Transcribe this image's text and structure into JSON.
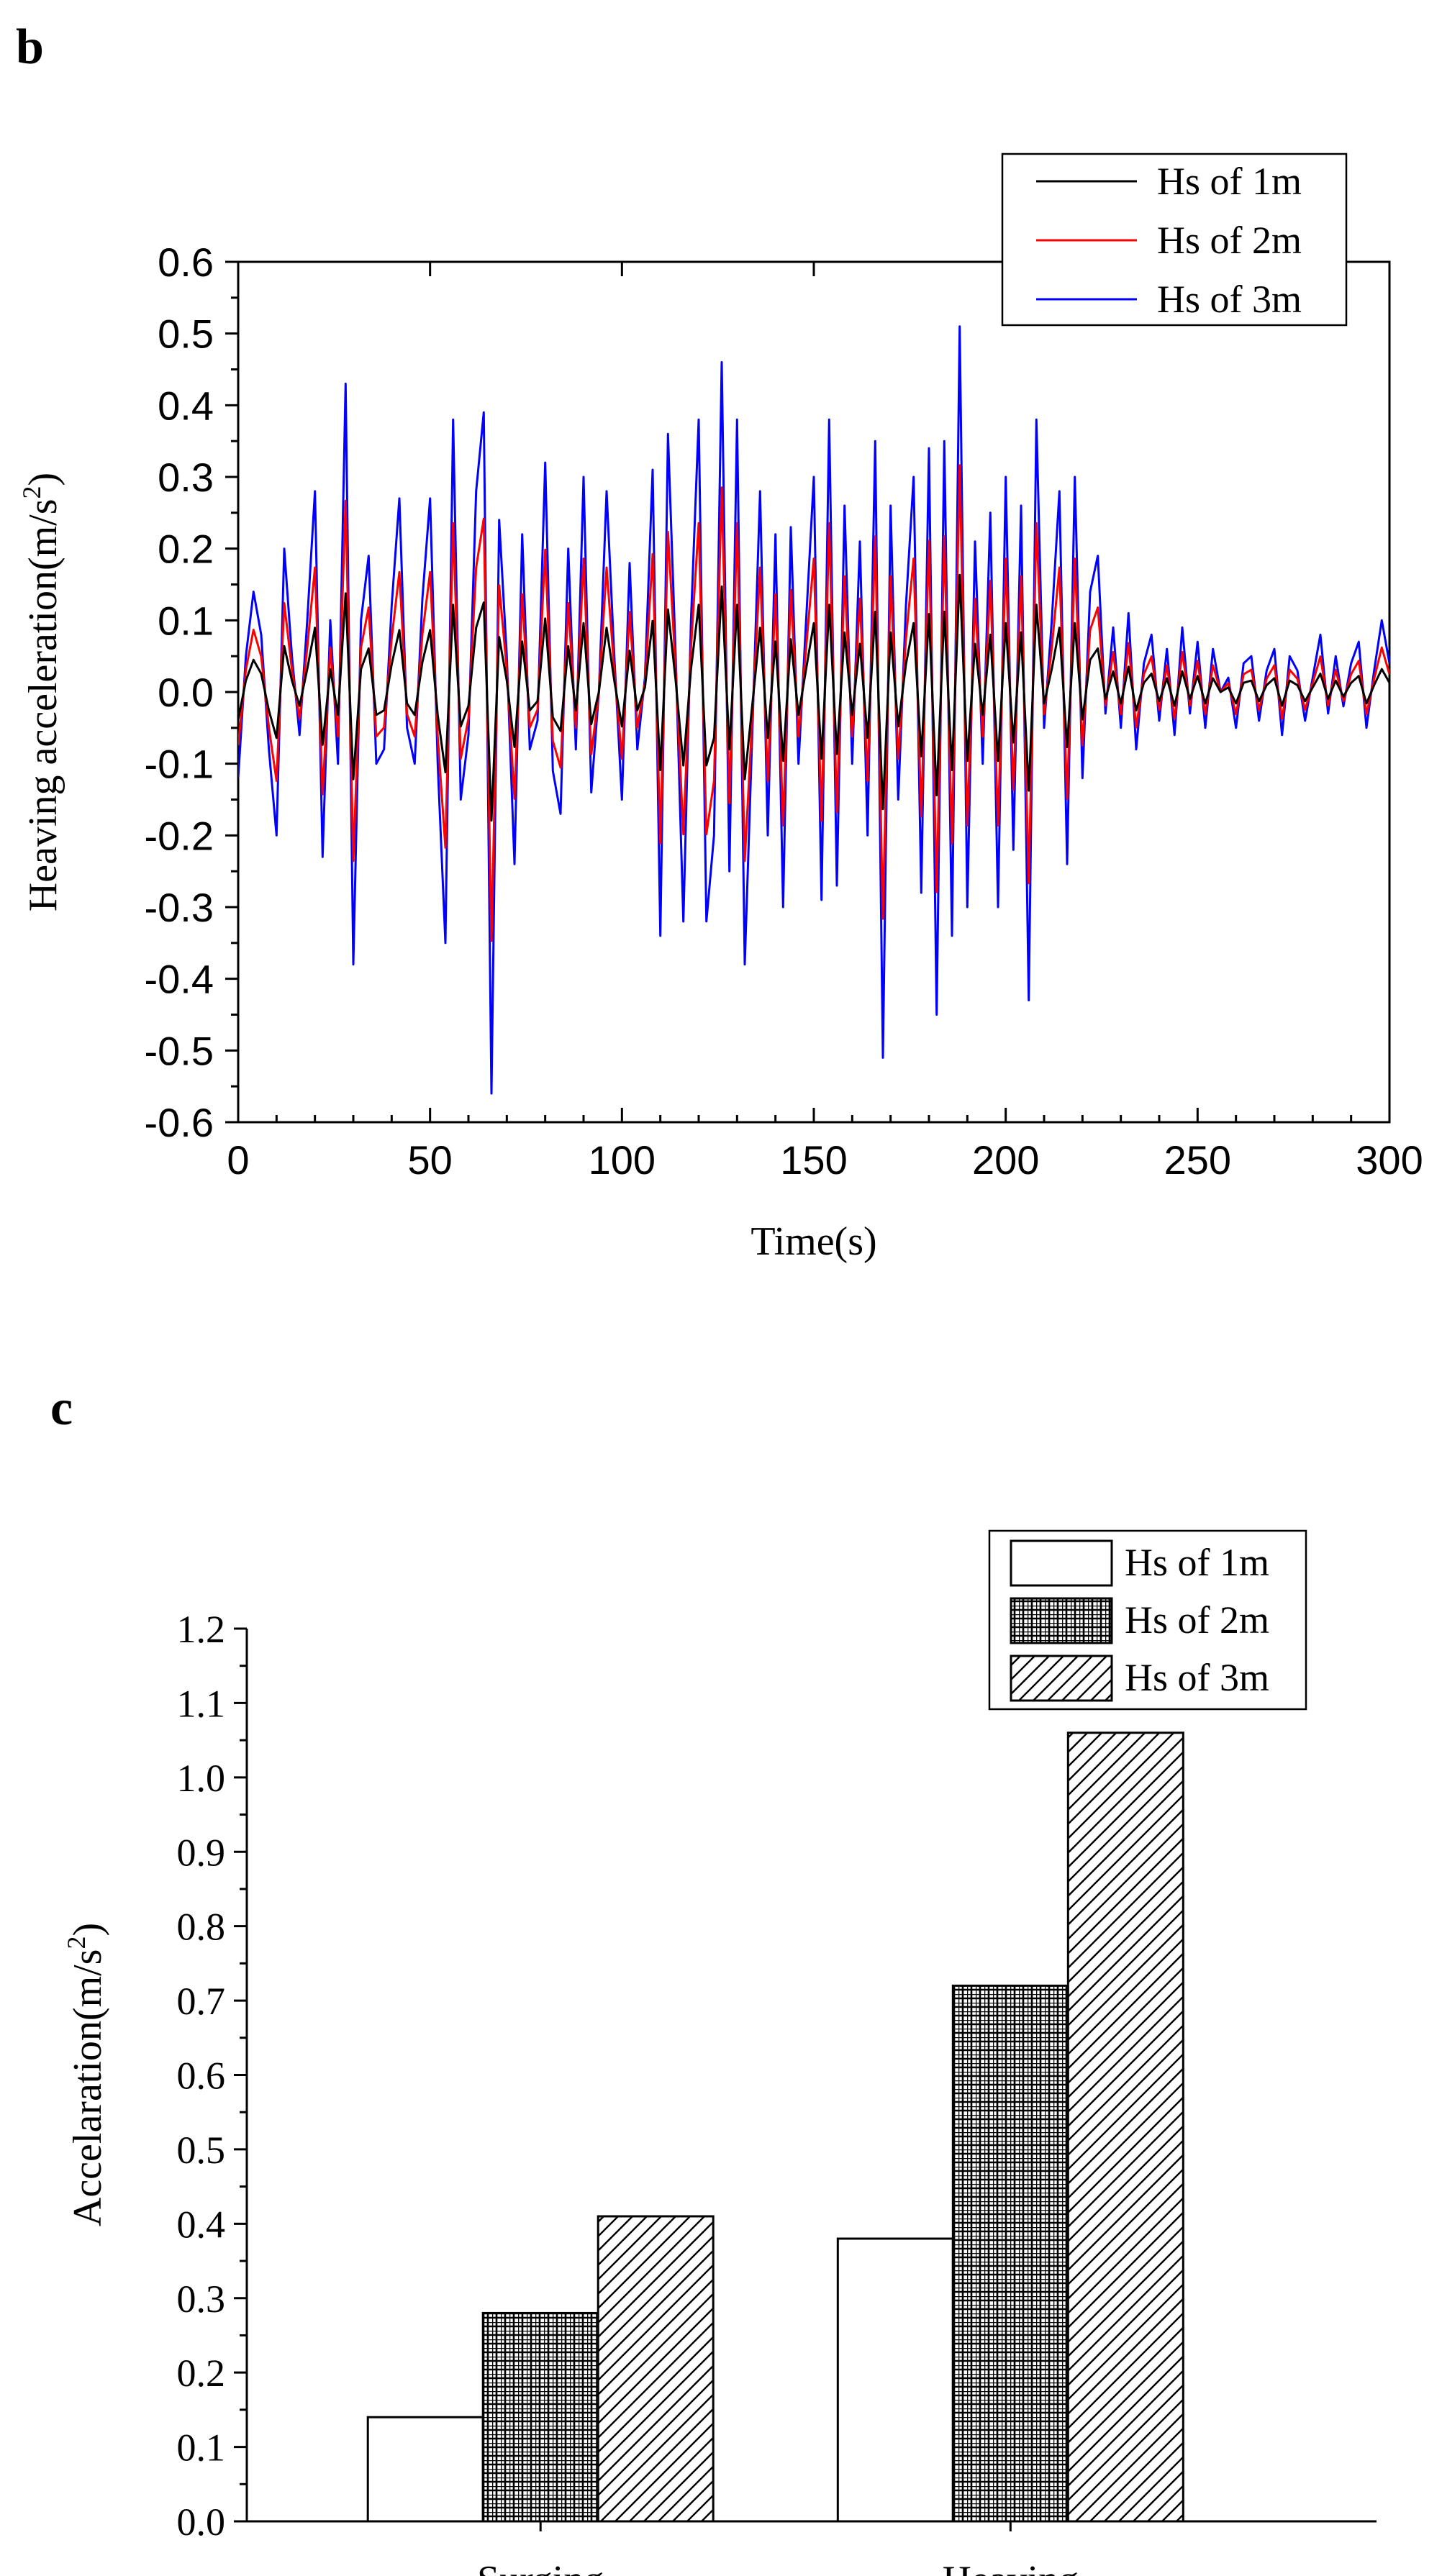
{
  "panels": {
    "b": {
      "label": "b"
    },
    "c": {
      "label": "c"
    }
  },
  "chart_data": [
    {
      "type": "line",
      "panel": "b",
      "title": "",
      "xlabel": "Time(s)",
      "ylabel_main": "Heaving acceleration(m/s",
      "ylabel_sup": "2",
      "ylabel_tail": ")",
      "xlim": [
        0,
        300
      ],
      "ylim": [
        -0.6,
        0.6
      ],
      "xticks": [
        0,
        50,
        100,
        150,
        200,
        250,
        300
      ],
      "xtick_labels": [
        "0",
        "50",
        "100",
        "150",
        "200",
        "250",
        "300"
      ],
      "yticks": [
        -0.6,
        -0.5,
        -0.4,
        -0.3,
        -0.2,
        -0.1,
        0.0,
        0.1,
        0.2,
        0.3,
        0.4,
        0.5,
        0.6
      ],
      "ytick_labels": [
        "-0.6",
        "-0.5",
        "-0.4",
        "-0.3",
        "-0.2",
        "-0.1",
        "0.0",
        "0.1",
        "0.2",
        "0.3",
        "0.4",
        "0.5",
        "0.6"
      ],
      "legend_position": "top-right",
      "series": [
        {
          "name": "Hs of 1m",
          "color": "#000000"
        },
        {
          "name": "Hs of 2m",
          "color": "#ff0000"
        },
        {
          "name": "Hs of 3m",
          "color": "#0000ff"
        }
      ],
      "x": [
        0,
        2,
        4,
        6,
        8,
        10,
        12,
        14,
        16,
        18,
        20,
        22,
        24,
        26,
        28,
        30,
        32,
        34,
        36,
        38,
        40,
        42,
        44,
        46,
        48,
        50,
        52,
        54,
        56,
        58,
        60,
        62,
        64,
        66,
        68,
        70,
        72,
        74,
        76,
        78,
        80,
        82,
        84,
        86,
        88,
        90,
        92,
        94,
        96,
        98,
        100,
        102,
        104,
        106,
        108,
        110,
        112,
        114,
        116,
        118,
        120,
        122,
        124,
        126,
        128,
        130,
        132,
        134,
        136,
        138,
        140,
        142,
        144,
        146,
        148,
        150,
        152,
        154,
        156,
        158,
        160,
        162,
        164,
        166,
        168,
        170,
        172,
        174,
        176,
        178,
        180,
        182,
        184,
        186,
        188,
        190,
        192,
        194,
        196,
        198,
        200,
        202,
        204,
        206,
        208,
        210,
        212,
        214,
        216,
        218,
        220,
        222,
        224,
        226,
        228,
        230,
        232,
        234,
        236,
        238,
        240,
        242,
        244,
        246,
        248,
        250,
        252,
        254,
        256,
        258,
        260,
        262,
        264,
        266,
        268,
        270,
        272,
        274,
        276,
        278,
        280,
        282,
        284,
        286,
        288,
        290,
        292,
        294,
        296,
        298,
        300
      ],
      "y_hs3": [
        -0.12,
        0.05,
        0.14,
        0.08,
        -0.08,
        -0.2,
        0.2,
        0.05,
        -0.06,
        0.1,
        0.28,
        -0.23,
        0.1,
        -0.1,
        0.43,
        -0.38,
        0.1,
        0.19,
        -0.1,
        -0.08,
        0.12,
        0.27,
        -0.05,
        -0.1,
        0.13,
        0.27,
        -0.1,
        -0.35,
        0.38,
        -0.15,
        -0.06,
        0.28,
        0.39,
        -0.56,
        0.24,
        0.05,
        -0.24,
        0.22,
        -0.08,
        -0.04,
        0.32,
        -0.11,
        -0.17,
        0.2,
        -0.08,
        0.3,
        -0.14,
        0.0,
        0.28,
        0.05,
        -0.15,
        0.18,
        -0.08,
        0.02,
        0.31,
        -0.34,
        0.36,
        0.05,
        -0.32,
        0.1,
        0.38,
        -0.32,
        -0.2,
        0.46,
        -0.25,
        0.38,
        -0.38,
        -0.05,
        0.28,
        -0.2,
        0.22,
        -0.3,
        0.23,
        -0.1,
        0.1,
        0.3,
        -0.29,
        0.38,
        -0.27,
        0.26,
        -0.1,
        0.21,
        -0.2,
        0.35,
        -0.51,
        0.26,
        -0.15,
        0.12,
        0.3,
        -0.28,
        0.34,
        -0.45,
        0.35,
        -0.34,
        0.51,
        -0.3,
        0.21,
        -0.1,
        0.25,
        -0.3,
        0.3,
        -0.22,
        0.26,
        -0.43,
        0.38,
        -0.05,
        0.1,
        0.28,
        -0.24,
        0.3,
        -0.12,
        0.14,
        0.19,
        -0.03,
        0.09,
        -0.05,
        0.11,
        -0.08,
        0.04,
        0.08,
        -0.04,
        0.06,
        -0.06,
        0.09,
        -0.03,
        0.07,
        -0.05,
        0.06,
        0.0,
        0.02,
        -0.05,
        0.04,
        0.05,
        -0.04,
        0.03,
        0.06,
        -0.06,
        0.05,
        0.03,
        -0.04,
        0.02,
        0.08,
        -0.03,
        0.05,
        -0.02,
        0.04,
        0.07,
        -0.05,
        0.03,
        0.1,
        0.04
      ],
      "y_hs2_scale": 0.62,
      "y_hs1_scale": 0.32
    },
    {
      "type": "bar",
      "panel": "c",
      "title": "",
      "xlabel": "",
      "ylabel_main": "Accelaration(m/s",
      "ylabel_sup": "2",
      "ylabel_tail": ")",
      "ylim": [
        0.0,
        1.2
      ],
      "yticks": [
        0.0,
        0.1,
        0.2,
        0.3,
        0.4,
        0.5,
        0.6,
        0.7,
        0.8,
        0.9,
        1.0,
        1.1,
        1.2
      ],
      "ytick_labels": [
        "0.0",
        "0.1",
        "0.2",
        "0.3",
        "0.4",
        "0.5",
        "0.6",
        "0.7",
        "0.8",
        "0.9",
        "1.0",
        "1.1",
        "1.2"
      ],
      "categories": [
        "Surging",
        "Heaving"
      ],
      "legend_position": "top-right",
      "series": [
        {
          "name": "Hs of 1m",
          "pattern": "none",
          "values": [
            0.14,
            0.38
          ]
        },
        {
          "name": "Hs of 2m",
          "pattern": "grid",
          "values": [
            0.28,
            0.72
          ]
        },
        {
          "name": "Hs of 3m",
          "pattern": "hatch",
          "values": [
            0.41,
            1.06
          ]
        }
      ]
    }
  ]
}
